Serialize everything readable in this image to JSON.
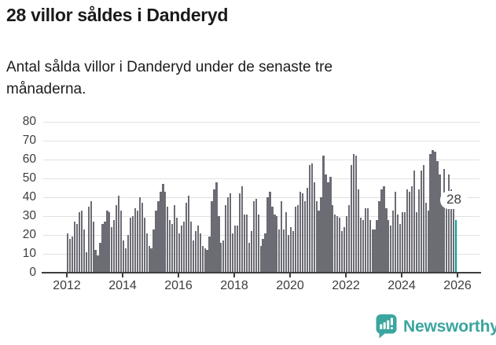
{
  "header": {
    "title": "28 villor såldes i Danderyd",
    "subtitle": "Antal sålda villor i Danderyd under de senaste tre månaderna."
  },
  "chart_data": {
    "type": "bar",
    "x_start": "2012-01",
    "frequency": "monthly",
    "values": [
      21,
      18,
      19,
      27,
      26,
      32,
      33,
      23,
      11,
      35,
      38,
      27,
      12,
      9,
      16,
      26,
      27,
      33,
      32,
      24,
      28,
      36,
      41,
      33,
      17,
      13,
      20,
      29,
      30,
      34,
      33,
      40,
      37,
      29,
      21,
      14,
      13,
      23,
      33,
      38,
      43,
      47,
      43,
      35,
      28,
      26,
      36,
      29,
      21,
      25,
      27,
      37,
      41,
      27,
      17,
      22,
      25,
      21,
      14,
      13,
      12,
      19,
      38,
      44,
      48,
      30,
      16,
      17,
      36,
      40,
      42,
      21,
      25,
      25,
      42,
      46,
      31,
      31,
      16,
      22,
      38,
      39,
      31,
      14,
      18,
      21,
      40,
      43,
      35,
      31,
      30,
      23,
      38,
      23,
      32,
      20,
      24,
      22,
      35,
      36,
      43,
      42,
      38,
      45,
      57,
      58,
      48,
      38,
      33,
      40,
      62,
      52,
      48,
      51,
      36,
      31,
      30,
      29,
      22,
      24,
      30,
      36,
      57,
      63,
      62,
      44,
      29,
      28,
      34,
      34,
      28,
      23,
      23,
      28,
      38,
      44,
      46,
      34,
      28,
      25,
      33,
      43,
      31,
      26,
      32,
      32,
      44,
      43,
      46,
      54,
      32,
      44,
      54,
      57,
      37,
      33,
      63,
      65,
      64,
      59,
      52,
      40,
      55,
      43,
      52,
      44,
      40,
      28
    ],
    "highlight": {
      "index": 167,
      "value": 28,
      "label": "28"
    },
    "x_tick_labels": [
      "2012",
      "2014",
      "2016",
      "2018",
      "2020",
      "2022",
      "2024",
      "2026"
    ],
    "y_ticks": [
      0,
      10,
      20,
      30,
      40,
      50,
      60,
      70,
      80
    ],
    "ylim": [
      0,
      80
    ],
    "grid": "horizontal",
    "legend": "none",
    "title": "28 villor såldes i Danderyd",
    "xlabel": "",
    "ylabel": ""
  },
  "colors": {
    "bar": "#6c6c75",
    "highlight": "#009c97",
    "brand": "#3ba59f",
    "grid": "#e1e1e1",
    "axis": "#3e3e3e",
    "text": "#1a1a1a",
    "tick_text": "#3d3d40"
  },
  "footer": {
    "brand": "Newsworthy",
    "logo_icon": "bar-chart-speech-bubble-icon"
  }
}
